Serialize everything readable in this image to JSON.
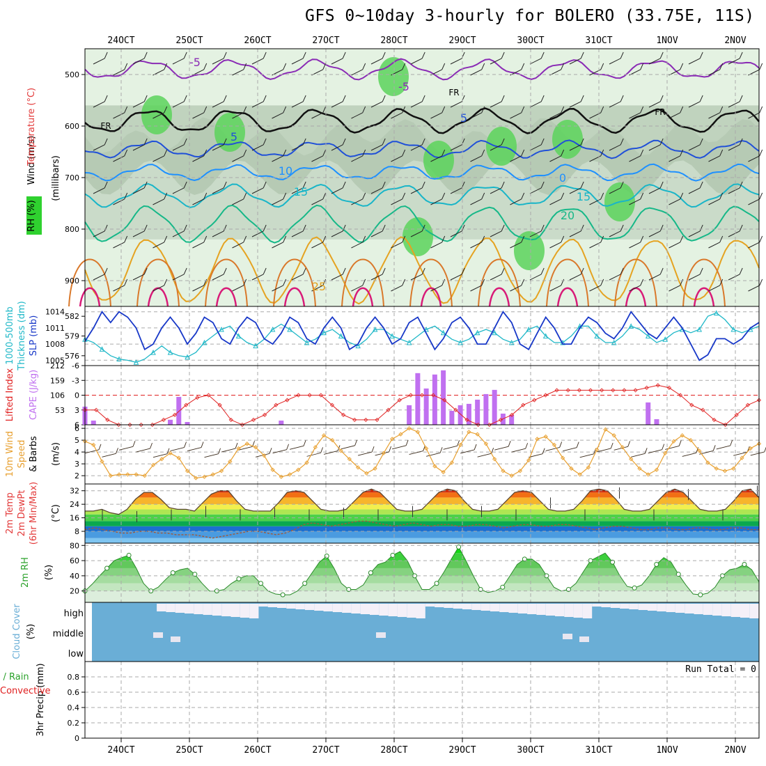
{
  "title": "GFS 0~10day 3-hourly for BOLERO (33.75E, 11S)",
  "colors": {
    "wind": "#000000",
    "temperature": "#e33a3a",
    "rh": "#2fd12f",
    "thickness": "#20b8c8",
    "slp": "#1838c8",
    "lifted_index": "#e02020",
    "cape": "#c070f0",
    "wind10m": "#e8a030",
    "cloud": "#6aaed6",
    "convective": "#e02020"
  },
  "chart_data": [
    {
      "type": "heatmap",
      "id": "upper_air",
      "xlabel": "",
      "date_ticks": [
        "24OCT",
        "25OCT",
        "26OCT",
        "27OCT",
        "28OCT",
        "29OCT",
        "30OCT",
        "31OCT",
        "1NOV",
        "2NOV"
      ],
      "ylabel_parts": [
        "Wind (m/s)",
        "Temperature (°C)",
        "RH (%)"
      ],
      "ylabel_units": "(millibars)",
      "y_ticks": [
        500,
        600,
        700,
        800,
        900
      ],
      "ylim": [
        950,
        450
      ],
      "isotherm_labels": [
        "-5",
        "-5",
        "FR",
        "FR",
        "FR",
        "5",
        "5",
        "10",
        "0",
        "15",
        "15",
        "20",
        "25"
      ],
      "isotherm_levels_mb": [
        {
          "t": -5,
          "p": 490
        },
        {
          "t": 0,
          "p": 590
        },
        {
          "t": 5,
          "p": 645
        },
        {
          "t": 10,
          "p": 690
        },
        {
          "t": 15,
          "p": 735
        },
        {
          "t": 20,
          "p": 790
        },
        {
          "t": 25,
          "p": 880
        }
      ]
    },
    {
      "type": "line",
      "id": "slp_thickness",
      "ylabel_left": "Thickness (dm)",
      "ylabel_left_prefix": "1000-500mb",
      "ylabel_right": "SLP (mb)",
      "left_ticks": [
        "582",
        "579",
        "576"
      ],
      "right_ticks": [
        "1014",
        "1011",
        "1008",
        "1005"
      ],
      "series": [
        {
          "name": "SLP (mb)",
          "values": [
            1008.5,
            1011,
            1014,
            1012,
            1014,
            1013,
            1011,
            1007,
            1008,
            1011,
            1013,
            1011,
            1008,
            1010,
            1013,
            1012,
            1009,
            1008,
            1011,
            1013,
            1012,
            1009,
            1008,
            1010,
            1013,
            1012,
            1009,
            1008,
            1011,
            1013,
            1011,
            1007,
            1008,
            1011,
            1013,
            1011,
            1008,
            1009,
            1012,
            1013,
            1010,
            1007,
            1009,
            1012,
            1013,
            1011,
            1008,
            1008,
            1011,
            1014,
            1012,
            1008,
            1007,
            1010,
            1013,
            1011,
            1008,
            1008,
            1011,
            1013,
            1012,
            1010,
            1009,
            1011,
            1014,
            1012,
            1010,
            1009,
            1011,
            1013,
            1011,
            1008,
            1005,
            1006,
            1009,
            1009,
            1008,
            1009,
            1011,
            1012
          ]
        },
        {
          "name": "Thickness (dm)",
          "values": [
            578.5,
            578,
            577,
            576,
            575.5,
            575.3,
            575,
            575.5,
            576.5,
            577.5,
            576.5,
            576,
            575.8,
            576.5,
            578,
            579,
            580,
            580.5,
            579,
            578,
            577.5,
            578.5,
            580,
            580.8,
            580,
            579,
            578,
            578.5,
            579.5,
            580,
            579,
            578,
            577.5,
            578.5,
            580,
            580,
            579,
            578.5,
            578,
            579,
            580,
            580.5,
            579.5,
            578.5,
            578,
            578.5,
            579.5,
            580,
            579.5,
            578.5,
            578,
            578.5,
            580,
            580.5,
            579,
            578,
            578,
            579,
            580.5,
            580.5,
            579,
            578,
            578,
            579,
            580.5,
            580,
            579,
            578,
            578.5,
            579.5,
            580,
            579.5,
            580,
            582,
            582.5,
            581.5,
            580,
            579.5,
            580,
            580.5
          ]
        }
      ]
    },
    {
      "type": "bar",
      "id": "cape_li",
      "ylabel_left": "Lifted Index",
      "ylabel_right": "CAPE (J/kg)",
      "left_ticks": [
        "-6",
        "-3",
        "0",
        "3",
        "6"
      ],
      "right_ticks": [
        "212",
        "159",
        "106",
        "53"
      ],
      "series": [
        {
          "name": "CAPE (J/kg)",
          "values": [
            65,
            15,
            0,
            0,
            0,
            0,
            0,
            0,
            0,
            0,
            18,
            100,
            10,
            0,
            0,
            0,
            0,
            0,
            0,
            0,
            0,
            0,
            0,
            15,
            0,
            0,
            0,
            0,
            0,
            0,
            0,
            0,
            0,
            0,
            0,
            0,
            0,
            0,
            70,
            185,
            130,
            180,
            195,
            50,
            70,
            75,
            90,
            110,
            125,
            40,
            35,
            0,
            0,
            0,
            0,
            0,
            0,
            0,
            0,
            0,
            0,
            0,
            0,
            0,
            0,
            0,
            80,
            20,
            0,
            0,
            0,
            0,
            0,
            0,
            0,
            0,
            0,
            0,
            0,
            0
          ]
        },
        {
          "name": "Lifted Index",
          "values": [
            3,
            3,
            5,
            6,
            6,
            6,
            6,
            5,
            4,
            2,
            0.5,
            0,
            2,
            5,
            6,
            5,
            4,
            2,
            1,
            0,
            0,
            0,
            2,
            4,
            5,
            5,
            5,
            3,
            1,
            0,
            0,
            0,
            1,
            3,
            5,
            6,
            6,
            5,
            4,
            2,
            1,
            0,
            -1,
            -1,
            -1,
            -1,
            -1,
            -1,
            -1,
            -1,
            -1.5,
            -2,
            -1.5,
            0,
            2,
            3,
            5,
            6,
            4,
            2,
            1
          ]
        }
      ]
    },
    {
      "type": "line",
      "id": "wind10m",
      "ylabel_left": "10m Wind",
      "ylabel_left2": "Speed",
      "ylabel_right": "& Barbs",
      "ylabel_units": "(m/s)",
      "y_ticks": [
        "6",
        "5",
        "4",
        "3",
        "2"
      ],
      "series": [
        {
          "name": "Speed (m/s)",
          "values": [
            4.9,
            4.6,
            3.2,
            2,
            2.1,
            2.1,
            2.1,
            2,
            2.9,
            3.4,
            3.9,
            3.5,
            2.4,
            1.8,
            1.9,
            2.1,
            2.4,
            3.2,
            4.3,
            4.7,
            4.4,
            3.7,
            2.5,
            1.9,
            2.1,
            2.5,
            3.1,
            4.4,
            5.4,
            5,
            4.1,
            3.4,
            2.7,
            2.2,
            2.6,
            3.9,
            5.1,
            5.5,
            6,
            5.7,
            4.3,
            2.8,
            2.3,
            3.1,
            4.6,
            5.7,
            5.5,
            4.7,
            3.4,
            2.4,
            2,
            2.4,
            3.3,
            5.1,
            5.3,
            4.6,
            3.5,
            2.6,
            2.1,
            2.7,
            4.2,
            5.9,
            5.4,
            4.4,
            3.4,
            2.6,
            2.1,
            2.5,
            3.9,
            4.9,
            5.4,
            5,
            4.1,
            3.1,
            2.6,
            2.4,
            2.6,
            3.5,
            4.3,
            4.7
          ]
        }
      ]
    },
    {
      "type": "area",
      "id": "temp2m",
      "ylabel_parts": [
        "2m Temp",
        "2m DewPt",
        "(6hr Min/Max)"
      ],
      "ylabel_units": "(°C)",
      "y_ticks": [
        "32",
        "24",
        "16",
        "8"
      ],
      "series": [
        {
          "name": "2m Temp",
          "values": [
            20,
            20,
            21,
            19,
            18,
            21,
            27,
            31,
            31,
            27,
            22,
            21,
            21,
            20,
            25,
            30,
            32,
            32,
            26,
            21,
            20,
            20,
            20,
            25,
            31,
            32,
            31,
            26,
            21,
            20,
            20,
            21,
            26,
            31,
            33,
            31,
            26,
            21,
            20,
            20,
            21,
            26,
            31,
            33,
            32,
            26,
            21,
            20,
            20,
            21,
            26,
            31,
            32,
            31,
            26,
            21,
            20,
            20,
            21,
            26,
            32,
            33,
            32,
            27,
            21,
            20,
            20,
            21,
            26,
            31,
            33,
            31,
            26,
            21,
            20,
            20,
            21,
            26,
            32,
            33,
            28
          ]
        },
        {
          "name": "2m DewPt",
          "values": [
            9,
            10,
            9,
            8,
            7,
            7,
            8,
            8,
            7,
            7,
            6,
            6,
            6,
            5,
            4,
            5,
            6,
            7,
            8,
            8,
            7,
            6,
            7,
            9,
            12,
            13,
            12,
            11,
            12,
            13,
            14,
            14,
            13,
            12,
            11,
            12,
            13,
            12,
            11,
            12,
            12,
            11,
            11,
            12,
            12,
            11,
            10,
            11,
            12,
            12,
            11,
            11,
            12,
            12,
            11,
            10,
            9,
            10,
            11,
            11,
            10,
            9,
            9,
            10,
            10,
            9,
            9,
            10,
            10,
            9,
            9,
            10,
            10,
            9,
            9
          ]
        }
      ]
    },
    {
      "type": "area",
      "id": "rh2m",
      "ylabel": "2m RH",
      "ylabel_units": "(%)",
      "y_ticks": [
        "80",
        "60",
        "40",
        "20"
      ],
      "series": [
        {
          "name": "2m RH",
          "values": [
            20,
            29,
            40,
            50,
            60,
            64,
            67,
            50,
            30,
            20,
            25,
            35,
            44,
            48,
            50,
            42,
            30,
            20,
            20,
            22,
            30,
            36,
            40,
            40,
            30,
            20,
            16,
            15,
            15,
            20,
            30,
            44,
            58,
            66,
            50,
            30,
            22,
            22,
            28,
            44,
            55,
            58,
            67,
            72,
            60,
            40,
            22,
            22,
            30,
            45,
            62,
            78,
            60,
            40,
            22,
            18,
            20,
            25,
            40,
            55,
            62,
            62,
            55,
            40,
            25,
            20,
            22,
            30,
            45,
            60,
            65,
            70,
            58,
            40,
            26,
            24,
            28,
            40,
            55,
            64,
            58,
            42,
            28,
            16,
            15,
            17,
            25,
            40,
            48,
            50,
            55,
            48,
            32
          ]
        }
      ]
    },
    {
      "type": "bar",
      "id": "cloud",
      "ylabel": "Cloud Cover",
      "ylabel_units": "(%)",
      "levels": [
        "high",
        "middle",
        "low"
      ]
    },
    {
      "type": "bar",
      "id": "precip",
      "ylabel": "3hr Precip (mm)",
      "legend_total": "Total / Rain",
      "legend_convective": "Convective",
      "run_total": "Run Total = 0",
      "y_ticks": [
        "0.8",
        "0.6",
        "0.4",
        "0.2",
        "0"
      ],
      "values": []
    }
  ]
}
